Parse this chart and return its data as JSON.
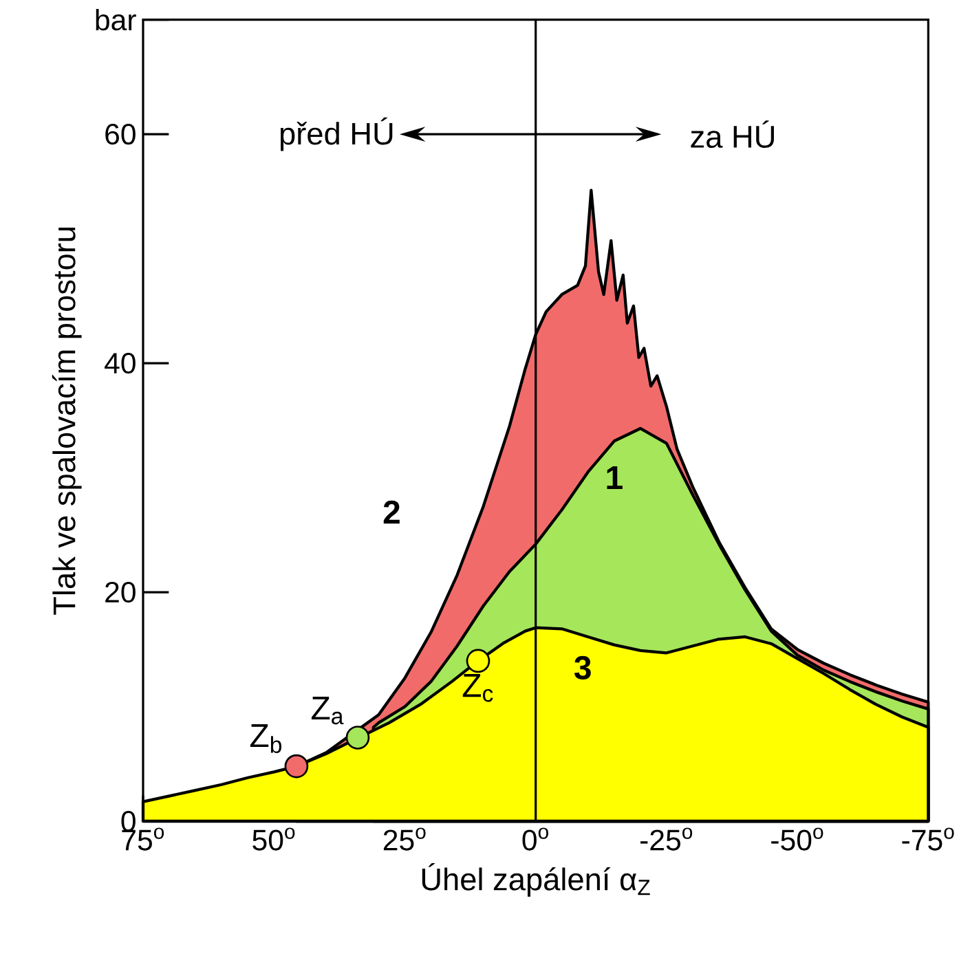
{
  "chart_data": {
    "type": "area",
    "xlabel": "Úhel zapálení α$_{Z}$",
    "ylabel": "Tlak ve spalovacím prostoru",
    "xlim": [
      75,
      -75
    ],
    "xticks": [
      {
        "value": 75,
        "label": "75$^{o}$"
      },
      {
        "value": 50,
        "label": "50$^{o}$"
      },
      {
        "value": 25,
        "label": "25$^{o}$"
      },
      {
        "value": 0,
        "label": "0$^{o}$"
      },
      {
        "value": -25,
        "label": "-25$^{o}$"
      },
      {
        "value": -50,
        "label": "-50$^{o}$"
      },
      {
        "value": -75,
        "label": "-75$^{o}$"
      }
    ],
    "ylim": [
      0,
      70
    ],
    "yticks": [
      0,
      20,
      40,
      60,
      {
        "value": 70,
        "label": "bar"
      }
    ],
    "ref_lines": [
      {
        "axis": "x",
        "value": 0,
        "color": "#000000"
      }
    ],
    "annotations": [
      "před HÚ",
      "za HÚ"
    ],
    "series": [
      {
        "name": "2",
        "color": "#f26b6b",
        "x": [
          45.7,
          40,
          30,
          25,
          20,
          15,
          10,
          5,
          2,
          0,
          -2,
          -5,
          -8,
          -9.5,
          -10.6,
          -12,
          -13,
          -14.4,
          -15.5,
          -16.7,
          -17.5,
          -18.7,
          -19.7,
          -20.7,
          -22,
          -23.2,
          -25,
          -27,
          -30,
          -35,
          -40,
          -45,
          -50,
          -55,
          -60,
          -65,
          -70,
          -75
        ],
        "values": [
          4.8,
          6.0,
          9.3,
          12.5,
          16.5,
          21.5,
          27.5,
          34.5,
          39.5,
          42.5,
          44.5,
          46,
          46.8,
          48.5,
          55.1,
          48,
          46,
          50.7,
          45.5,
          47.7,
          43.5,
          45,
          40.5,
          41.3,
          38,
          38.9,
          36.2,
          32.5,
          29.2,
          24.4,
          20.4,
          16.8,
          15.0,
          13.8,
          12.8,
          11.9,
          11.1,
          10.4
        ]
      },
      {
        "name": "1",
        "color": "#a6e65a",
        "x": [
          31,
          30,
          25,
          20,
          15,
          10,
          5,
          0,
          -5,
          -10,
          -15,
          -20,
          -25,
          -30,
          -35,
          -40,
          -45,
          -50,
          -55,
          -60,
          -65,
          -70,
          -75
        ],
        "values": [
          8.2,
          8.6,
          10.0,
          12.2,
          15.3,
          18.8,
          21.8,
          24.2,
          27.2,
          30.5,
          33.2,
          34.3,
          33.0,
          28.5,
          24.2,
          20.2,
          16.6,
          14.5,
          13.2,
          12.2,
          11.3,
          10.5,
          9.8
        ]
      },
      {
        "name": "3",
        "color": "#ffff00",
        "x": [
          75,
          70,
          65,
          60,
          55,
          50,
          45.7,
          40,
          28,
          22,
          16,
          11,
          6,
          2,
          0,
          -5,
          -10,
          -15,
          -20,
          -25,
          -30,
          -35,
          -40,
          -45,
          -50,
          -55,
          -60,
          -65,
          -70,
          -75
        ],
        "values": [
          1.7,
          2.2,
          2.7,
          3.2,
          3.8,
          4.3,
          4.8,
          5.9,
          8.6,
          10.2,
          12.2,
          14.0,
          15.6,
          16.6,
          16.9,
          16.8,
          16.1,
          15.4,
          14.9,
          14.7,
          15.3,
          15.9,
          16.1,
          15.5,
          14.2,
          12.9,
          11.5,
          10.2,
          9.1,
          8.2
        ]
      },
      {
        "type": "scatter",
        "name": "Z$_{b}$",
        "color": "#f26b6b",
        "x": [
          45.7
        ],
        "values": [
          4.8
        ]
      },
      {
        "type": "scatter",
        "name": "Z$_{a}$",
        "color": "#a6e65a",
        "x": [
          34
        ],
        "values": [
          7.3
        ]
      },
      {
        "type": "scatter",
        "name": "Z$_{c}$",
        "color": "#ffff00",
        "x": [
          11
        ],
        "values": [
          14.0
        ]
      }
    ]
  }
}
